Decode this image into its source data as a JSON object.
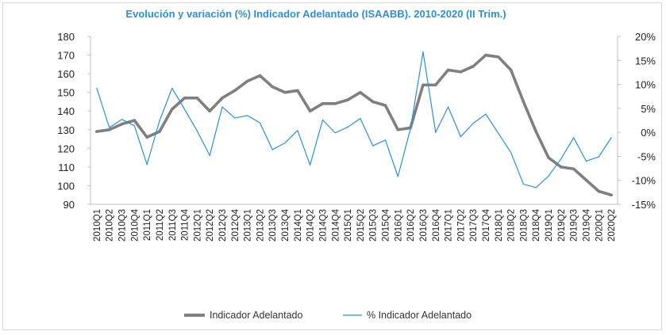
{
  "chart_data": {
    "type": "line",
    "title": "Evolución y variación (%) Indicador Adelantado (ISAABB). 2010-2020 (II Trim.)",
    "categories": [
      "2010Q1",
      "2010Q2",
      "2010Q3",
      "2010Q4",
      "2011Q1",
      "2011Q2",
      "2011Q3",
      "2011Q4",
      "2012Q1",
      "2012Q2",
      "2012Q3",
      "2012Q4",
      "2013Q1",
      "2013Q2",
      "2013Q3",
      "2013Q4",
      "2014Q1",
      "2014Q2",
      "2014Q3",
      "2014Q4",
      "2015Q1",
      "2015Q2",
      "2015Q3",
      "2015Q4",
      "2016Q1",
      "2016Q2",
      "2016Q3",
      "2016Q4",
      "2017Q1",
      "2017Q2",
      "2017Q3",
      "2017Q4",
      "2018Q1",
      "2018Q2",
      "2018Q3",
      "2018Q4",
      "2019Q1",
      "2019Q2",
      "2019Q3",
      "2019Q4",
      "2020Q1",
      "2020Q2"
    ],
    "series": [
      {
        "name": "Indicador Adelantado",
        "axis": "left",
        "color": "#7f7f7f",
        "values": [
          129,
          130,
          133,
          135,
          126,
          129,
          141,
          147,
          147,
          140,
          147,
          151,
          156,
          159,
          153,
          150,
          151,
          140,
          144,
          144,
          146,
          150,
          145,
          143,
          130,
          131,
          154,
          154,
          162,
          161,
          164,
          170,
          169,
          162,
          145,
          129,
          115,
          110,
          109,
          103,
          97,
          95
        ]
      },
      {
        "name": "% Indicador Adelantado",
        "axis": "right",
        "color": "#2e8fd6",
        "values": [
          9.2,
          1.0,
          2.7,
          1.4,
          -6.7,
          2.4,
          9.2,
          4.8,
          0.3,
          -4.8,
          5.3,
          3.0,
          3.5,
          2.0,
          -3.6,
          -2.2,
          0.4,
          -6.8,
          2.6,
          -0.1,
          1.1,
          2.9,
          -2.8,
          -1.6,
          -9.2,
          0.8,
          16.8,
          0.0,
          5.3,
          -0.9,
          1.9,
          3.8,
          -0.2,
          -4.2,
          -10.8,
          -11.5,
          -9.1,
          -5.5,
          -1.1,
          -6.0,
          -5.1,
          -1.1
        ]
      }
    ],
    "left_axis": {
      "min": 90,
      "max": 180,
      "step": 10,
      "labels": [
        "90",
        "100",
        "110",
        "120",
        "130",
        "140",
        "150",
        "160",
        "170",
        "180"
      ]
    },
    "right_axis": {
      "min": -15,
      "max": 20,
      "step": 5,
      "labels": [
        "-15%",
        "-10%",
        "-5%",
        "0%",
        "5%",
        "10%",
        "15%",
        "20%"
      ]
    },
    "grid": false,
    "legend_position": "bottom"
  }
}
